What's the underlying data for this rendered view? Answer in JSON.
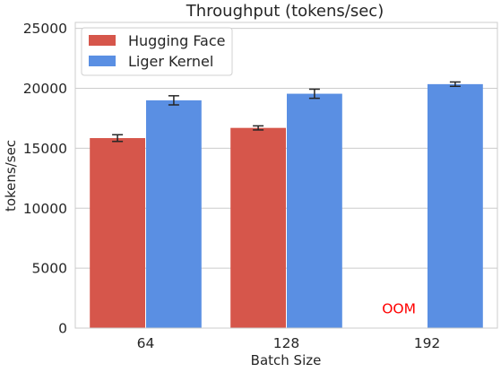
{
  "chart_data": {
    "type": "bar",
    "title": "Throughput (tokens/sec)",
    "xlabel": "Batch Size",
    "ylabel": "tokens/sec",
    "categories": [
      "64",
      "128",
      "192"
    ],
    "ylim": [
      0,
      25500
    ],
    "yticks": [
      0,
      5000,
      10000,
      15000,
      20000,
      25000
    ],
    "grid": "horizontal",
    "legend_position": "top-left",
    "series": [
      {
        "name": "Hugging Face",
        "color": "#d6564b",
        "values": [
          15850,
          16700,
          null
        ],
        "errors": [
          280,
          170,
          null
        ]
      },
      {
        "name": "Liger Kernel",
        "color": "#5a8fe3",
        "values": [
          19000,
          19550,
          20350
        ],
        "errors": [
          380,
          380,
          180
        ]
      }
    ],
    "annotations": [
      {
        "text": "OOM",
        "category": "192",
        "series": "Hugging Face",
        "y": 1700,
        "color": "#ff0000"
      }
    ]
  }
}
